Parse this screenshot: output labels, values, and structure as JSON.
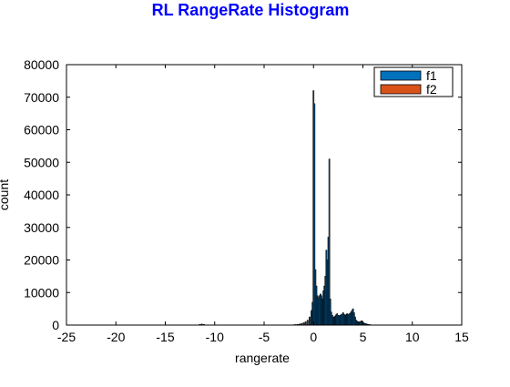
{
  "chart_data": {
    "type": "bar",
    "title": "RL RangeRate Histogram",
    "xlabel": "rangerate",
    "ylabel": "count",
    "xlim": [
      -25,
      15
    ],
    "ylim": [
      0,
      80000
    ],
    "xticks": [
      "-25",
      "-20",
      "-15",
      "-10",
      "-5",
      "0",
      "5",
      "10",
      "15"
    ],
    "yticks": [
      "0",
      "10000",
      "20000",
      "30000",
      "40000",
      "50000",
      "60000",
      "70000",
      "80000"
    ],
    "grid": false,
    "legend": "top-right",
    "bin_width": 0.1,
    "series": [
      {
        "name": "f1",
        "color": "#0072bd",
        "x": [
          -11.5,
          -11.3,
          -11.1,
          -2.0,
          -1.8,
          -1.6,
          -1.4,
          -1.2,
          -1.0,
          -0.8,
          -0.6,
          -0.4,
          -0.2,
          -0.1,
          0.0,
          0.1,
          0.2,
          0.3,
          0.4,
          0.5,
          0.6,
          0.7,
          0.8,
          0.9,
          1.0,
          1.1,
          1.2,
          1.3,
          1.4,
          1.5,
          1.6,
          1.7,
          1.8,
          1.9,
          2.0,
          2.1,
          2.2,
          2.3,
          2.4,
          2.5,
          2.6,
          2.7,
          2.8,
          2.9,
          3.0,
          3.1,
          3.2,
          3.3,
          3.4,
          3.5,
          3.6,
          3.7,
          3.8,
          3.9,
          4.0,
          4.1,
          4.2,
          4.3,
          4.4,
          4.5,
          4.6,
          4.7,
          4.8,
          4.9,
          5.0,
          5.1,
          5.2,
          5.3,
          5.4,
          5.5,
          5.6,
          5.7,
          5.8,
          5.9,
          6.0,
          6.1,
          6.2
        ],
        "values": [
          200,
          300,
          200,
          100,
          150,
          200,
          300,
          500,
          700,
          1000,
          1500,
          2500,
          4500,
          7000,
          72000,
          68000,
          17000,
          12000,
          9000,
          8500,
          8000,
          9500,
          9000,
          8000,
          10500,
          12000,
          15000,
          23000,
          20000,
          27000,
          51000,
          8000,
          4000,
          3000,
          2500,
          2500,
          2800,
          3200,
          3500,
          3000,
          2800,
          3000,
          3200,
          3400,
          3800,
          3300,
          3000,
          3200,
          3500,
          3200,
          3400,
          3600,
          4000,
          4500,
          5000,
          3800,
          2500,
          1500,
          1200,
          1000,
          900,
          800,
          1000,
          1200,
          800,
          600,
          500,
          400,
          300,
          200,
          150,
          100,
          80,
          60,
          50,
          40,
          30
        ]
      },
      {
        "name": "f2",
        "color": "#d95319",
        "x": [
          -11.5,
          -11.3,
          -11.1,
          -2.0,
          -1.8,
          -1.6,
          -1.4,
          -1.2,
          -1.0,
          -0.8,
          -0.6,
          -0.4,
          -0.2,
          -0.1,
          0.0,
          0.1,
          0.2,
          0.3,
          0.4,
          0.5,
          0.6,
          0.7,
          0.8,
          0.9,
          1.0,
          1.1,
          1.2,
          1.3,
          1.4,
          1.5,
          1.6,
          1.7,
          1.8,
          1.9,
          2.0,
          2.1,
          2.2,
          2.3,
          2.4,
          2.5,
          2.6,
          2.7,
          2.8,
          2.9,
          3.0,
          3.1,
          3.2,
          3.3,
          3.4,
          3.5,
          3.6,
          3.7,
          3.8,
          3.9,
          4.0,
          4.1,
          4.2,
          4.3,
          4.4,
          4.5,
          4.6,
          4.7,
          4.8,
          4.9,
          5.0,
          5.1,
          5.2,
          5.3,
          5.4,
          5.5,
          5.6,
          5.7,
          5.8,
          5.9,
          6.0,
          6.1,
          6.2
        ],
        "values": [
          150,
          250,
          150,
          80,
          120,
          180,
          280,
          450,
          650,
          900,
          1400,
          2300,
          4000,
          3500,
          5000,
          4500,
          5000,
          4800,
          3500,
          4000,
          9000,
          9500,
          6000,
          4500,
          2500,
          1800,
          1500,
          1200,
          1800,
          2000,
          1500,
          1500,
          1200,
          1000,
          1200,
          1500,
          1800,
          2500,
          3000,
          2800,
          2500,
          2800,
          3000,
          3200,
          3500,
          3000,
          2800,
          3000,
          3300,
          3000,
          3200,
          3500,
          3800,
          4200,
          4800,
          3500,
          2300,
          1400,
          1100,
          900,
          1000,
          900,
          1200,
          1300,
          700,
          500,
          400,
          300,
          250,
          180,
          120,
          80,
          60,
          50,
          40,
          30,
          20
        ]
      }
    ]
  }
}
